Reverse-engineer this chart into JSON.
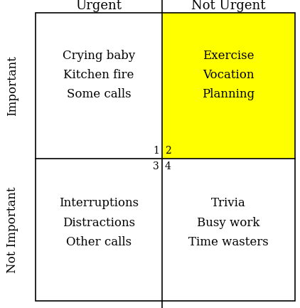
{
  "title_col1": "Urgent",
  "title_col2": "Not Urgent",
  "label_row1": "Important",
  "label_row2": "Not Important",
  "q1_number": "1",
  "q2_number": "2",
  "q3_number": "3",
  "q4_number": "4",
  "q1_text": "Crying baby\nKitchen fire\nSome calls",
  "q2_text": "Exercise\nVocation\nPlanning",
  "q3_text": "Interruptions\nDistractions\nOther calls",
  "q4_text": "Trivia\nBusy work\nTime wasters",
  "q2_bg_color": "#FFFF00",
  "q1_bg_color": "#FFFFFF",
  "q3_bg_color": "#FFFFFF",
  "q4_bg_color": "#FFFFFF",
  "background_color": "#FFFFFF",
  "text_color": "#000000",
  "q2_text_color": "#000000",
  "grid_color": "#000000",
  "font_size_header": 13,
  "font_size_content": 12,
  "font_size_number": 10,
  "font_size_side_label": 12
}
